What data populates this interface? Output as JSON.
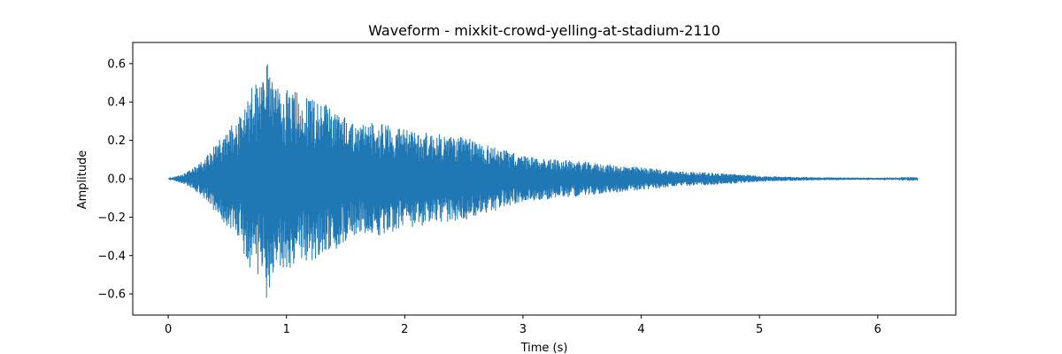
{
  "chart_data": {
    "type": "line",
    "title": "Waveform - mixkit-crowd-yelling-at-stadium-2110",
    "xlabel": "Time (s)",
    "ylabel": "Amplitude",
    "xlim": [
      -0.3,
      6.66
    ],
    "ylim": [
      -0.71,
      0.71
    ],
    "xticks": [
      0,
      1,
      2,
      3,
      4,
      5,
      6
    ],
    "xtick_labels": [
      "0",
      "1",
      "2",
      "3",
      "4",
      "5",
      "6"
    ],
    "yticks": [
      -0.6,
      -0.4,
      -0.2,
      0.0,
      0.2,
      0.4,
      0.6
    ],
    "ytick_labels": [
      "−0.6",
      "−0.4",
      "−0.2",
      "0.0",
      "0.2",
      "0.4",
      "0.6"
    ],
    "grid": false,
    "series": [
      {
        "color": "#1f77b4",
        "duration": 6.34,
        "envelope": {
          "t": [
            0.0,
            0.1,
            0.2,
            0.3,
            0.4,
            0.5,
            0.6,
            0.7,
            0.8,
            0.83,
            0.9,
            1.0,
            1.2,
            1.4,
            1.6,
            1.8,
            2.0,
            2.2,
            2.5,
            2.8,
            3.0,
            3.3,
            3.5,
            3.8,
            4.0,
            4.3,
            4.5,
            4.8,
            5.0,
            5.3,
            5.5,
            6.0,
            6.34
          ],
          "max": [
            0.0,
            0.02,
            0.05,
            0.1,
            0.18,
            0.25,
            0.33,
            0.48,
            0.52,
            0.65,
            0.47,
            0.47,
            0.43,
            0.38,
            0.28,
            0.3,
            0.26,
            0.24,
            0.22,
            0.16,
            0.12,
            0.1,
            0.09,
            0.07,
            0.06,
            0.04,
            0.035,
            0.025,
            0.015,
            0.01,
            0.008,
            0.005,
            0.003
          ]
        }
      }
    ]
  }
}
